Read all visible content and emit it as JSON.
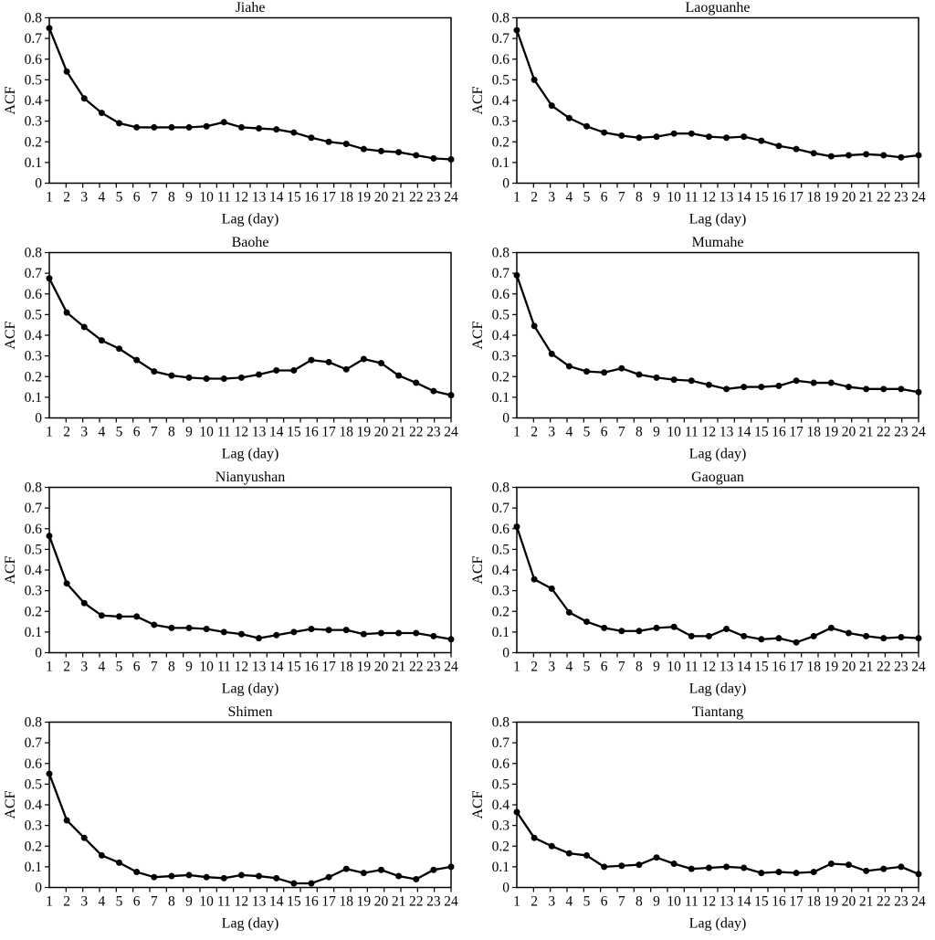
{
  "figure": {
    "background": "#ffffff",
    "line_color": "#000000",
    "marker_color": "#000000"
  },
  "axes": {
    "xlabel": "Lag (day)",
    "ylabel": "ACF",
    "ylim": [
      0,
      0.8
    ],
    "ytick_labels": [
      "0",
      "0.1",
      "0.2",
      "0.3",
      "0.4",
      "0.5",
      "0.6",
      "0.7",
      "0.8"
    ],
    "xtick_labels": [
      "1",
      "2",
      "3",
      "4",
      "5",
      "6",
      "7",
      "8",
      "9",
      "10",
      "11",
      "12",
      "13",
      "14",
      "15",
      "16",
      "17",
      "18",
      "19",
      "20",
      "21",
      "22",
      "23",
      "24"
    ],
    "grid": false,
    "legend": "none"
  },
  "chart_data": [
    {
      "type": "line",
      "title": "Jiahe",
      "xlabel": "Lag (day)",
      "ylabel": "ACF",
      "ylim": [
        0,
        0.8
      ],
      "x": [
        1,
        2,
        3,
        4,
        5,
        6,
        7,
        8,
        9,
        10,
        11,
        12,
        13,
        14,
        15,
        16,
        17,
        18,
        19,
        20,
        21,
        22,
        23,
        24
      ],
      "values": [
        0.75,
        0.54,
        0.41,
        0.34,
        0.29,
        0.27,
        0.27,
        0.27,
        0.27,
        0.275,
        0.295,
        0.27,
        0.265,
        0.26,
        0.245,
        0.22,
        0.2,
        0.19,
        0.165,
        0.155,
        0.15,
        0.135,
        0.12,
        0.115
      ]
    },
    {
      "type": "line",
      "title": "Laoguanhe",
      "xlabel": "Lag (day)",
      "ylabel": "ACF",
      "ylim": [
        0,
        0.8
      ],
      "x": [
        1,
        2,
        3,
        4,
        5,
        6,
        7,
        8,
        9,
        10,
        11,
        12,
        13,
        14,
        15,
        16,
        17,
        18,
        19,
        20,
        21,
        22,
        23,
        24
      ],
      "values": [
        0.74,
        0.5,
        0.375,
        0.315,
        0.275,
        0.245,
        0.23,
        0.22,
        0.225,
        0.24,
        0.24,
        0.225,
        0.22,
        0.225,
        0.205,
        0.18,
        0.165,
        0.145,
        0.13,
        0.135,
        0.14,
        0.135,
        0.125,
        0.135
      ]
    },
    {
      "type": "line",
      "title": "Baohe",
      "xlabel": "Lag (day)",
      "ylabel": "ACF",
      "ylim": [
        0,
        0.8
      ],
      "x": [
        1,
        2,
        3,
        4,
        5,
        6,
        7,
        8,
        9,
        10,
        11,
        12,
        13,
        14,
        15,
        16,
        17,
        18,
        19,
        20,
        21,
        22,
        23,
        24
      ],
      "values": [
        0.675,
        0.51,
        0.44,
        0.375,
        0.335,
        0.28,
        0.225,
        0.205,
        0.195,
        0.19,
        0.19,
        0.195,
        0.21,
        0.23,
        0.23,
        0.28,
        0.27,
        0.235,
        0.285,
        0.265,
        0.205,
        0.17,
        0.13,
        0.11
      ]
    },
    {
      "type": "line",
      "title": "Mumahe",
      "xlabel": "Lag (day)",
      "ylabel": "ACF",
      "ylim": [
        0,
        0.8
      ],
      "x": [
        1,
        2,
        3,
        4,
        5,
        6,
        7,
        8,
        9,
        10,
        11,
        12,
        13,
        14,
        15,
        16,
        17,
        18,
        19,
        20,
        21,
        22,
        23,
        24
      ],
      "values": [
        0.69,
        0.445,
        0.31,
        0.25,
        0.225,
        0.22,
        0.24,
        0.21,
        0.195,
        0.185,
        0.18,
        0.16,
        0.14,
        0.15,
        0.15,
        0.155,
        0.18,
        0.17,
        0.17,
        0.15,
        0.14,
        0.14,
        0.14,
        0.125
      ]
    },
    {
      "type": "line",
      "title": "Nianyushan",
      "xlabel": "Lag (day)",
      "ylabel": "ACF",
      "ylim": [
        0,
        0.8
      ],
      "x": [
        1,
        2,
        3,
        4,
        5,
        6,
        7,
        8,
        9,
        10,
        11,
        12,
        13,
        14,
        15,
        16,
        17,
        18,
        19,
        20,
        21,
        22,
        23,
        24
      ],
      "values": [
        0.565,
        0.335,
        0.24,
        0.18,
        0.175,
        0.175,
        0.135,
        0.12,
        0.12,
        0.115,
        0.1,
        0.09,
        0.07,
        0.085,
        0.1,
        0.115,
        0.11,
        0.11,
        0.09,
        0.095,
        0.095,
        0.095,
        0.08,
        0.065
      ]
    },
    {
      "type": "line",
      "title": "Gaoguan",
      "xlabel": "Lag (day)",
      "ylabel": "ACF",
      "ylim": [
        0,
        0.8
      ],
      "x": [
        1,
        2,
        3,
        4,
        5,
        6,
        7,
        8,
        9,
        10,
        11,
        12,
        13,
        14,
        15,
        16,
        17,
        18,
        19,
        20,
        21,
        22,
        23,
        24
      ],
      "values": [
        0.61,
        0.355,
        0.31,
        0.195,
        0.15,
        0.12,
        0.105,
        0.105,
        0.12,
        0.125,
        0.08,
        0.08,
        0.115,
        0.08,
        0.065,
        0.07,
        0.05,
        0.08,
        0.12,
        0.095,
        0.08,
        0.07,
        0.075,
        0.07
      ]
    },
    {
      "type": "line",
      "title": "Shimen",
      "xlabel": "Lag (day)",
      "ylabel": "ACF",
      "ylim": [
        0,
        0.8
      ],
      "x": [
        1,
        2,
        3,
        4,
        5,
        6,
        7,
        8,
        9,
        10,
        11,
        12,
        13,
        14,
        15,
        16,
        17,
        18,
        19,
        20,
        21,
        22,
        23,
        24
      ],
      "values": [
        0.55,
        0.325,
        0.24,
        0.155,
        0.12,
        0.075,
        0.05,
        0.055,
        0.06,
        0.05,
        0.045,
        0.06,
        0.055,
        0.045,
        0.02,
        0.02,
        0.05,
        0.09,
        0.07,
        0.085,
        0.055,
        0.04,
        0.085,
        0.1
      ]
    },
    {
      "type": "line",
      "title": "Tiantang",
      "xlabel": "Lag (day)",
      "ylabel": "ACF",
      "ylim": [
        0,
        0.8
      ],
      "x": [
        1,
        2,
        3,
        4,
        5,
        6,
        7,
        8,
        9,
        10,
        11,
        12,
        13,
        14,
        15,
        16,
        17,
        18,
        19,
        20,
        21,
        22,
        23,
        24
      ],
      "values": [
        0.365,
        0.24,
        0.2,
        0.165,
        0.155,
        0.1,
        0.105,
        0.11,
        0.145,
        0.115,
        0.09,
        0.095,
        0.1,
        0.095,
        0.07,
        0.075,
        0.07,
        0.075,
        0.115,
        0.11,
        0.08,
        0.09,
        0.1,
        0.065
      ]
    }
  ]
}
